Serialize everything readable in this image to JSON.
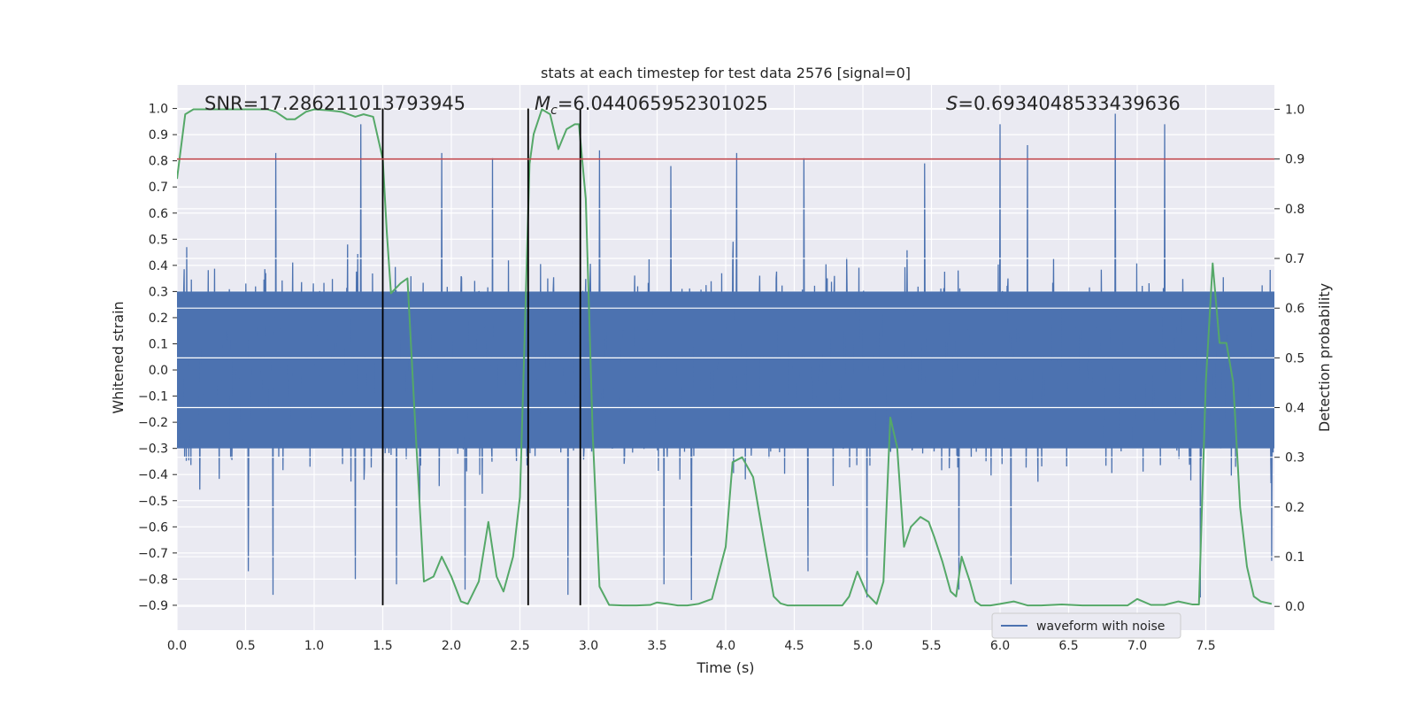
{
  "chart_data": {
    "type": "line",
    "title": "stats at each timestep for test data 2576 [signal=0]",
    "xlabel": "Time (s)",
    "ylabel_left": "Whitened strain",
    "ylabel_right": "Detection probability",
    "xlim": [
      0.0,
      8.0
    ],
    "ylim_left": [
      -0.995,
      1.09
    ],
    "ylim_right": [
      -0.0477,
      1.049
    ],
    "x_ticks": [
      "0.0",
      "0.5",
      "1.0",
      "1.5",
      "2.0",
      "2.5",
      "3.0",
      "3.5",
      "4.0",
      "4.5",
      "5.0",
      "5.5",
      "6.0",
      "6.5",
      "7.0",
      "7.5"
    ],
    "y_left_ticks": [
      "1.0",
      "0.9",
      "0.8",
      "0.7",
      "0.6",
      "0.5",
      "0.4",
      "0.3",
      "0.2",
      "0.1",
      "0.0",
      "−0.1",
      "−0.2",
      "−0.3",
      "−0.4",
      "−0.5",
      "−0.6",
      "−0.7",
      "−0.8",
      "−0.9"
    ],
    "y_right_ticks": [
      "1.0",
      "0.9",
      "0.8",
      "0.7",
      "0.6",
      "0.5",
      "0.4",
      "0.3",
      "0.2",
      "0.1",
      "0.0"
    ],
    "threshold_right": 0.9,
    "vertical_lines_x": [
      1.5,
      2.56,
      2.94
    ],
    "annotations": {
      "snr": "SNR=17.286211013793945",
      "mc_symbol": "M",
      "mc_sub": "c",
      "mc_value": "=6.044065952301025",
      "s_symbol": "S",
      "s_value": "=0.6934048533439636"
    },
    "legend": "waveform with noise",
    "series": [
      {
        "name": "waveform with noise",
        "axis": "left",
        "style": "dense-band",
        "band_core": [
          -0.3,
          0.3
        ],
        "envelope_typical": [
          -0.55,
          0.52
        ],
        "peaks_up": [
          [
            1.34,
            0.94
          ],
          [
            0.72,
            0.83
          ],
          [
            1.93,
            0.83
          ],
          [
            2.3,
            0.81
          ],
          [
            3.08,
            0.84
          ],
          [
            4.08,
            0.83
          ],
          [
            4.57,
            0.81
          ],
          [
            6.0,
            0.94
          ],
          [
            6.2,
            0.86
          ],
          [
            6.84,
            0.98
          ],
          [
            7.2,
            0.94
          ],
          [
            3.6,
            0.78
          ],
          [
            5.45,
            0.79
          ]
        ],
        "peaks_down": [
          [
            0.52,
            -0.77
          ],
          [
            0.7,
            -0.86
          ],
          [
            1.3,
            -0.8
          ],
          [
            1.6,
            -0.82
          ],
          [
            2.1,
            -0.84
          ],
          [
            2.85,
            -0.86
          ],
          [
            3.55,
            -0.82
          ],
          [
            3.75,
            -0.88
          ],
          [
            4.6,
            -0.77
          ],
          [
            5.03,
            -0.87
          ],
          [
            5.7,
            -0.84
          ],
          [
            6.08,
            -0.82
          ],
          [
            7.46,
            -0.87
          ],
          [
            7.98,
            -0.73
          ]
        ],
        "color": "#4c72b0"
      },
      {
        "name": "detection probability",
        "axis": "right",
        "color": "#55a868",
        "x": [
          0.0,
          0.06,
          0.12,
          0.2,
          0.3,
          0.4,
          0.5,
          0.6,
          0.66,
          0.72,
          0.8,
          0.86,
          0.94,
          1.0,
          1.1,
          1.2,
          1.3,
          1.36,
          1.43,
          1.5,
          1.53,
          1.56,
          1.63,
          1.68,
          1.73,
          1.8,
          1.87,
          1.93,
          2.0,
          2.07,
          2.12,
          2.2,
          2.27,
          2.33,
          2.38,
          2.45,
          2.5,
          2.53,
          2.57,
          2.6,
          2.66,
          2.72,
          2.78,
          2.84,
          2.9,
          2.93,
          2.98,
          3.03,
          3.08,
          3.15,
          3.25,
          3.35,
          3.45,
          3.5,
          3.58,
          3.65,
          3.72,
          3.8,
          3.9,
          4.0,
          4.05,
          4.12,
          4.2,
          4.28,
          4.35,
          4.4,
          4.45,
          4.55,
          4.65,
          4.75,
          4.85,
          4.9,
          4.96,
          5.03,
          5.1,
          5.15,
          5.2,
          5.25,
          5.3,
          5.35,
          5.42,
          5.48,
          5.52,
          5.58,
          5.64,
          5.68,
          5.72,
          5.78,
          5.82,
          5.86,
          5.93,
          6.0,
          6.1,
          6.2,
          6.3,
          6.45,
          6.6,
          6.8,
          6.93,
          7.0,
          7.1,
          7.2,
          7.3,
          7.4,
          7.45,
          7.5,
          7.55,
          7.6,
          7.65,
          7.7,
          7.75,
          7.8,
          7.85,
          7.9,
          7.98
        ],
        "values": [
          0.86,
          0.99,
          1.0,
          1.0,
          1.0,
          1.0,
          1.0,
          1.0,
          1.0,
          0.995,
          0.98,
          0.98,
          0.995,
          1.0,
          0.998,
          0.995,
          0.985,
          0.99,
          0.985,
          0.9,
          0.75,
          0.63,
          0.65,
          0.66,
          0.4,
          0.05,
          0.06,
          0.1,
          0.06,
          0.01,
          0.005,
          0.05,
          0.17,
          0.06,
          0.03,
          0.1,
          0.22,
          0.5,
          0.89,
          0.95,
          1.0,
          0.99,
          0.92,
          0.96,
          0.97,
          0.97,
          0.82,
          0.35,
          0.04,
          0.003,
          0.002,
          0.002,
          0.003,
          0.008,
          0.005,
          0.002,
          0.002,
          0.005,
          0.015,
          0.12,
          0.29,
          0.3,
          0.26,
          0.13,
          0.02,
          0.006,
          0.002,
          0.002,
          0.002,
          0.002,
          0.002,
          0.02,
          0.07,
          0.025,
          0.005,
          0.05,
          0.38,
          0.32,
          0.12,
          0.16,
          0.18,
          0.17,
          0.14,
          0.09,
          0.03,
          0.02,
          0.1,
          0.05,
          0.01,
          0.002,
          0.002,
          0.005,
          0.01,
          0.002,
          0.002,
          0.004,
          0.002,
          0.002,
          0.002,
          0.015,
          0.003,
          0.003,
          0.01,
          0.004,
          0.004,
          0.45,
          0.69,
          0.53,
          0.53,
          0.45,
          0.2,
          0.08,
          0.02,
          0.01,
          0.005
        ]
      }
    ]
  }
}
